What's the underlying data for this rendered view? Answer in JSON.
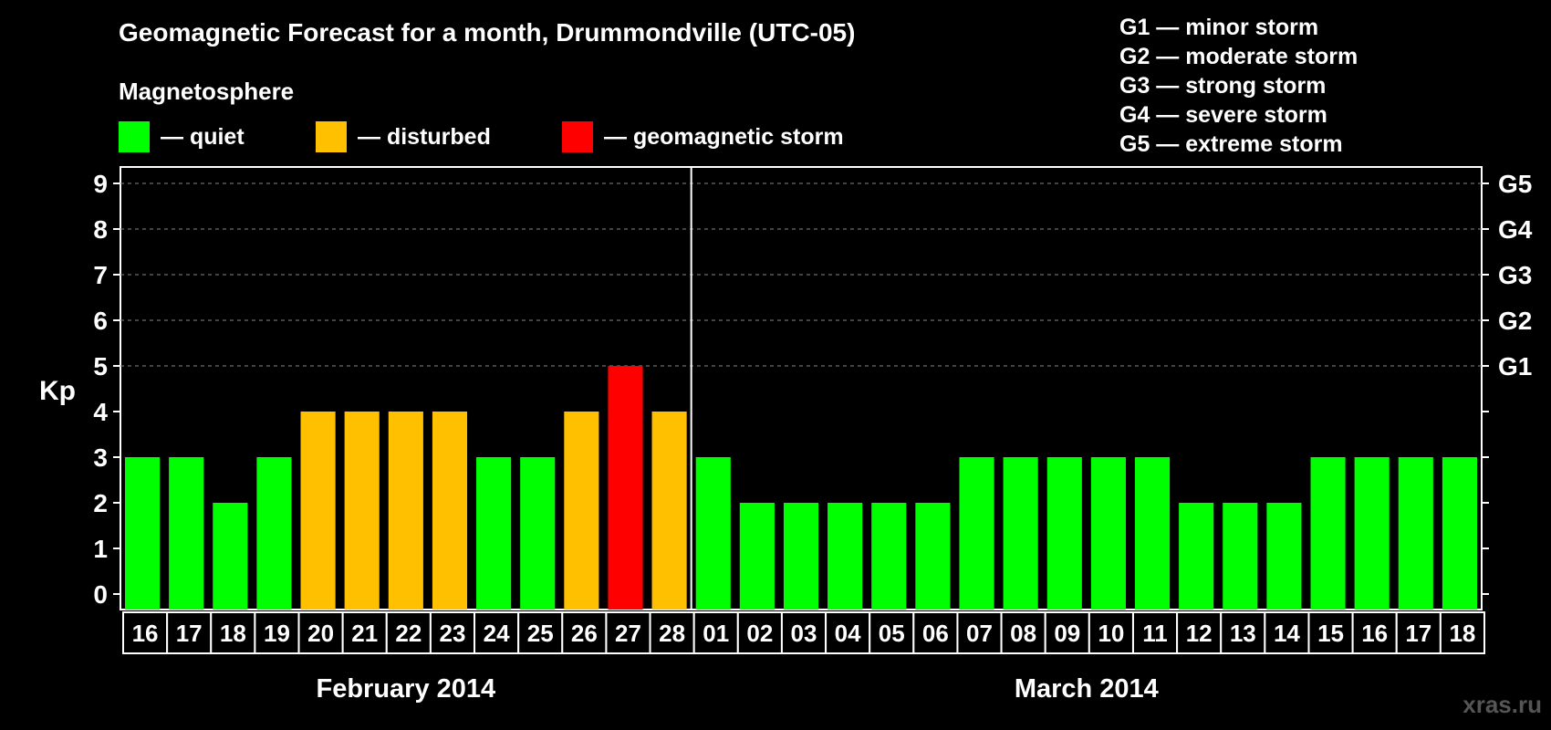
{
  "title": "Geomagnetic Forecast for a month, Drummondville (UTC-05)",
  "magnetosphere_heading": "Magnetosphere",
  "legend": {
    "quiet": {
      "label": "— quiet",
      "color": "#00ff00"
    },
    "disturbed": {
      "label": "— disturbed",
      "color": "#ffc000"
    },
    "storm": {
      "label": "— geomagnetic storm",
      "color": "#ff0000"
    }
  },
  "storm_scale": [
    "G1 — minor storm",
    "G2 — moderate storm",
    "G3 — strong storm",
    "G4 — severe storm",
    "G5 — extreme storm"
  ],
  "watermark": "xras.ru",
  "chart_data": {
    "type": "bar",
    "ylabel": "Kp",
    "ylim": [
      0,
      9
    ],
    "yticks": [
      0,
      1,
      2,
      3,
      4,
      5,
      6,
      7,
      8,
      9
    ],
    "right_axis_labels": [
      {
        "kp": 5,
        "label": "G1"
      },
      {
        "kp": 6,
        "label": "G2"
      },
      {
        "kp": 7,
        "label": "G3"
      },
      {
        "kp": 8,
        "label": "G4"
      },
      {
        "kp": 9,
        "label": "G5"
      }
    ],
    "grid": "dashed horizontal at Kp 5-9",
    "categories": [
      "16",
      "17",
      "18",
      "19",
      "20",
      "21",
      "22",
      "23",
      "24",
      "25",
      "26",
      "27",
      "28",
      "01",
      "02",
      "03",
      "04",
      "05",
      "06",
      "07",
      "08",
      "09",
      "10",
      "11",
      "12",
      "13",
      "14",
      "15",
      "16",
      "17",
      "18"
    ],
    "values": [
      3,
      3,
      2,
      3,
      4,
      4,
      4,
      4,
      3,
      3,
      4,
      5,
      4,
      3,
      2,
      2,
      2,
      2,
      2,
      3,
      3,
      3,
      3,
      3,
      2,
      2,
      2,
      3,
      3,
      3,
      3
    ],
    "month_groups": [
      {
        "label": "February 2014",
        "count": 13
      },
      {
        "label": "March 2014",
        "count": 18
      }
    ]
  }
}
